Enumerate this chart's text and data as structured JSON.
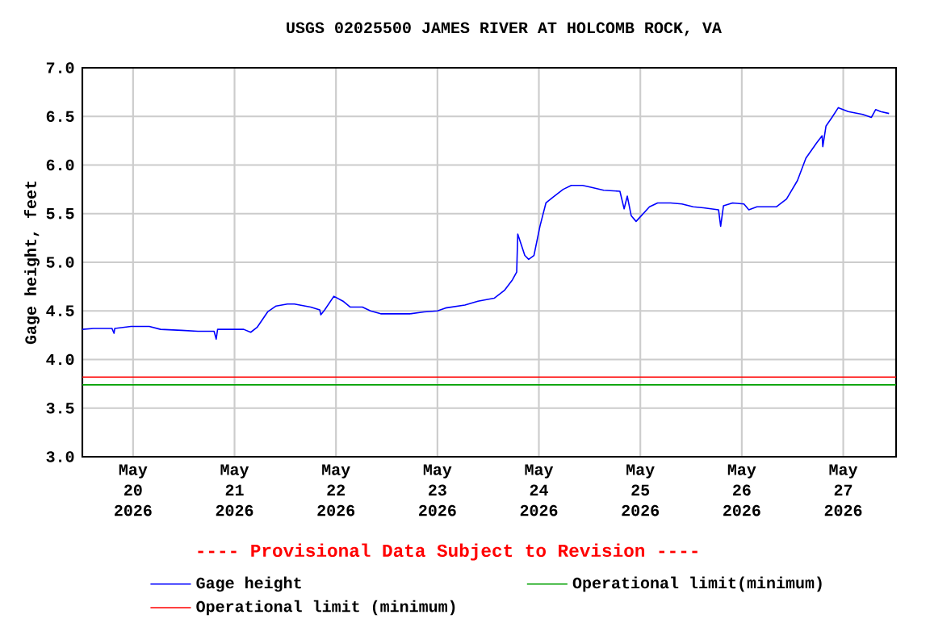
{
  "chart_data": {
    "type": "line",
    "title": "USGS 02025500 JAMES RIVER AT HOLCOMB ROCK, VA",
    "ylabel": "Gage height, feet",
    "annotations": [
      "---- Provisional Data Subject to Revision ----"
    ],
    "xlim": [
      "2026-05-19T12:00",
      "2026-05-27T12:30"
    ],
    "xticks": [
      {
        "value": "2026-05-20",
        "label": "May 20 2026"
      },
      {
        "value": "2026-05-21",
        "label": "May 21 2026"
      },
      {
        "value": "2026-05-22",
        "label": "May 22 2026"
      },
      {
        "value": "2026-05-23",
        "label": "May 23 2026"
      },
      {
        "value": "2026-05-24",
        "label": "May 24 2026"
      },
      {
        "value": "2026-05-25",
        "label": "May 25 2026"
      },
      {
        "value": "2026-05-26",
        "label": "May 26 2026"
      },
      {
        "value": "2026-05-27",
        "label": "May 27 2026"
      }
    ],
    "ylim": [
      3.0,
      7.0
    ],
    "yticks": [
      {
        "value": 3.0,
        "label": "3.0"
      },
      {
        "value": 3.5,
        "label": "3.5"
      },
      {
        "value": 4.0,
        "label": "4.0"
      },
      {
        "value": 4.5,
        "label": "4.5"
      },
      {
        "value": 5.0,
        "label": "5.0"
      },
      {
        "value": 5.5,
        "label": "5.5"
      },
      {
        "value": 6.0,
        "label": "6.0"
      },
      {
        "value": 6.5,
        "label": "6.5"
      },
      {
        "value": 7.0,
        "label": "7.0"
      }
    ],
    "grid": true,
    "legend": "bottom",
    "line_style": "solid",
    "ref_lines": [
      {
        "axis": "y",
        "value": 3.74,
        "label": "Operational limit(minimum)",
        "color": "#00a000"
      },
      {
        "axis": "y",
        "value": 3.82,
        "label": "Operational limit (minimum)",
        "color": "#ff0000"
      }
    ],
    "series": [
      {
        "name": "Gage height",
        "color": "#0000ff",
        "x": [
          "2026-05-19T12:00",
          "2026-05-19T14:40",
          "2026-05-19T19:00",
          "2026-05-19T19:30",
          "2026-05-19T19:40",
          "2026-05-19T23:30",
          "2026-05-20T03:50",
          "2026-05-20T06:30",
          "2026-05-20T11:30",
          "2026-05-20T15:20",
          "2026-05-20T19:10",
          "2026-05-20T19:40",
          "2026-05-20T20:00",
          "2026-05-21T02:10",
          "2026-05-21T03:50",
          "2026-05-21T05:20",
          "2026-05-21T07:50",
          "2026-05-21T09:50",
          "2026-05-21T12:30",
          "2026-05-21T14:10",
          "2026-05-21T18:00",
          "2026-05-21T20:10",
          "2026-05-21T20:25",
          "2026-05-21T21:20",
          "2026-05-21T23:30",
          "2026-05-22T01:40",
          "2026-05-22T03:20",
          "2026-05-22T06:15",
          "2026-05-22T08:10",
          "2026-05-22T10:35",
          "2026-05-22T17:30",
          "2026-05-22T20:50",
          "2026-05-23T00:00",
          "2026-05-23T01:55",
          "2026-05-23T06:30",
          "2026-05-23T09:35",
          "2026-05-23T13:25",
          "2026-05-23T15:50",
          "2026-05-23T17:45",
          "2026-05-23T18:45",
          "2026-05-23T19:00",
          "2026-05-23T20:40",
          "2026-05-23T21:35",
          "2026-05-23T22:50",
          "2026-05-24T00:15",
          "2026-05-24T01:40",
          "2026-05-24T03:20",
          "2026-05-24T05:45",
          "2026-05-24T07:40",
          "2026-05-24T10:20",
          "2026-05-24T12:30",
          "2026-05-24T15:20",
          "2026-05-24T19:10",
          "2026-05-24T20:10",
          "2026-05-24T20:55",
          "2026-05-24T21:50",
          "2026-05-24T23:00",
          "2026-05-25T02:10",
          "2026-05-25T04:05",
          "2026-05-25T07:10",
          "2026-05-25T09:50",
          "2026-05-25T12:30",
          "2026-05-25T14:55",
          "2026-05-25T18:30",
          "2026-05-25T19:00",
          "2026-05-25T19:40",
          "2026-05-25T21:50",
          "2026-05-26T00:30",
          "2026-05-26T01:40",
          "2026-05-26T03:35",
          "2026-05-26T08:10",
          "2026-05-26T10:35",
          "2026-05-26T13:10",
          "2026-05-26T15:10",
          "2026-05-26T17:45",
          "2026-05-26T19:00",
          "2026-05-26T19:10",
          "2026-05-26T19:55",
          "2026-05-26T21:20",
          "2026-05-26T22:50",
          "2026-05-27T01:10",
          "2026-05-27T04:35",
          "2026-05-27T06:40",
          "2026-05-27T07:40",
          "2026-05-27T08:50",
          "2026-05-27T10:50"
        ],
        "values": [
          4.31,
          4.32,
          4.32,
          4.27,
          4.32,
          4.34,
          4.34,
          4.31,
          4.3,
          4.29,
          4.29,
          4.21,
          4.31,
          4.31,
          4.28,
          4.33,
          4.49,
          4.55,
          4.57,
          4.57,
          4.54,
          4.51,
          4.46,
          4.51,
          4.65,
          4.6,
          4.54,
          4.54,
          4.5,
          4.47,
          4.47,
          4.49,
          4.5,
          4.53,
          4.56,
          4.6,
          4.63,
          4.71,
          4.82,
          4.9,
          5.29,
          5.07,
          5.03,
          5.07,
          5.37,
          5.61,
          5.67,
          5.75,
          5.79,
          5.79,
          5.77,
          5.74,
          5.73,
          5.55,
          5.68,
          5.48,
          5.42,
          5.57,
          5.61,
          5.61,
          5.6,
          5.57,
          5.56,
          5.54,
          5.37,
          5.58,
          5.61,
          5.6,
          5.54,
          5.57,
          5.57,
          5.65,
          5.84,
          6.07,
          6.23,
          6.3,
          6.19,
          6.4,
          6.49,
          6.59,
          6.55,
          6.52,
          6.49,
          6.57,
          6.55,
          6.53
        ]
      }
    ]
  }
}
